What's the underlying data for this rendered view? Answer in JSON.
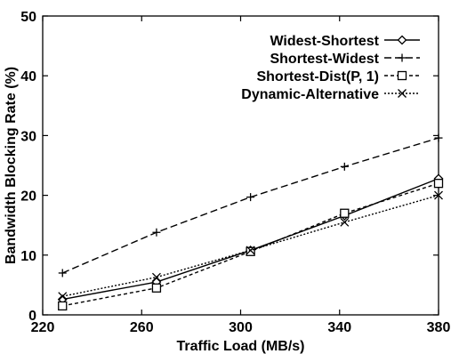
{
  "chart_data": {
    "type": "line",
    "title": "",
    "xlabel": "Traffic Load (MB/s)",
    "ylabel": "Bandwidth Blocking Rate (%)",
    "xlim": [
      220,
      380
    ],
    "ylim": [
      0,
      50
    ],
    "xticks": [
      220,
      260,
      300,
      340,
      380
    ],
    "yticks": [
      0,
      10,
      20,
      30,
      40,
      50
    ],
    "grid": false,
    "legend_position": "top-right",
    "x": [
      228,
      266,
      304,
      342,
      380
    ],
    "series": [
      {
        "name": "Widest-Shortest",
        "marker": "diamond",
        "dash": "solid",
        "values": [
          2.6,
          5.5,
          10.8,
          16.6,
          22.8
        ]
      },
      {
        "name": "Shortest-Widest",
        "marker": "plus",
        "dash": "dashed",
        "values": [
          7.0,
          13.8,
          19.7,
          24.8,
          29.6
        ]
      },
      {
        "name": "Shortest-Dist(P, 1)",
        "marker": "square",
        "dash": "short-dashed",
        "values": [
          1.5,
          4.5,
          10.6,
          17.0,
          22.0
        ]
      },
      {
        "name": "Dynamic-Alternative",
        "marker": "cross",
        "dash": "dotted",
        "values": [
          3.1,
          6.3,
          10.8,
          15.5,
          20.0
        ]
      }
    ]
  }
}
